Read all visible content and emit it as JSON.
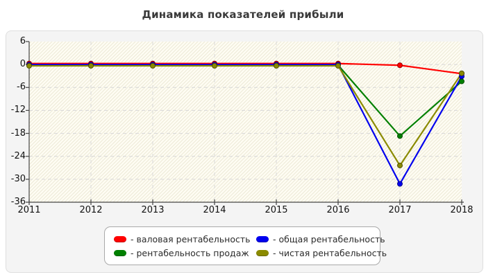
{
  "title": "Динамика показателей прибыли",
  "chart_data": {
    "type": "line",
    "title": "Динамика показателей прибыли",
    "x": [
      2011,
      2012,
      2013,
      2014,
      2015,
      2016,
      2017,
      2018
    ],
    "series": [
      {
        "name": "валовая рентабельность",
        "color": "#ff0000",
        "values": [
          0,
          0,
          0,
          0,
          0,
          0,
          -0.2,
          -2.4
        ]
      },
      {
        "name": "рентабельность продаж",
        "color": "#008000",
        "values": [
          0,
          0,
          0,
          0,
          0,
          0,
          -18.7,
          -4.4
        ]
      },
      {
        "name": "общая рентабельность",
        "color": "#0000ee",
        "values": [
          0,
          0,
          0,
          0,
          0,
          0,
          -31.2,
          -3.1
        ]
      },
      {
        "name": "чистая рентабельность",
        "color": "#8b8b00",
        "values": [
          0,
          0,
          0,
          0,
          0,
          0,
          -26.4,
          -2.3
        ]
      }
    ],
    "yticks": [
      6,
      0,
      -6,
      -12,
      -18,
      -24,
      -30,
      -36
    ],
    "ylim": [
      -36,
      6
    ],
    "xlabel": "",
    "ylabel": "",
    "grid": "dashed horizontal and vertical, light gray",
    "plot_background": "white with pale cream diagonal hatching",
    "legend_position": "bottom-center"
  },
  "legend": {
    "items": [
      {
        "label": "- валовая рентабельность",
        "color": "#ff0000"
      },
      {
        "label": "- общая рентабельность",
        "color": "#0000ee"
      },
      {
        "label": "- рентабельность продаж",
        "color": "#008000"
      },
      {
        "label": "- чистая рентабельность",
        "color": "#8b8b00"
      }
    ]
  },
  "colors": {
    "panel_background": "#f4f4f4",
    "panel_border": "#dedede",
    "axis": "#444444",
    "gridline": "#d6d6d6",
    "hatch_stripe": "#efecda",
    "hatch_base": "#fffdf4",
    "title_text": "#3a3a3a",
    "axis_text": "#111111"
  }
}
